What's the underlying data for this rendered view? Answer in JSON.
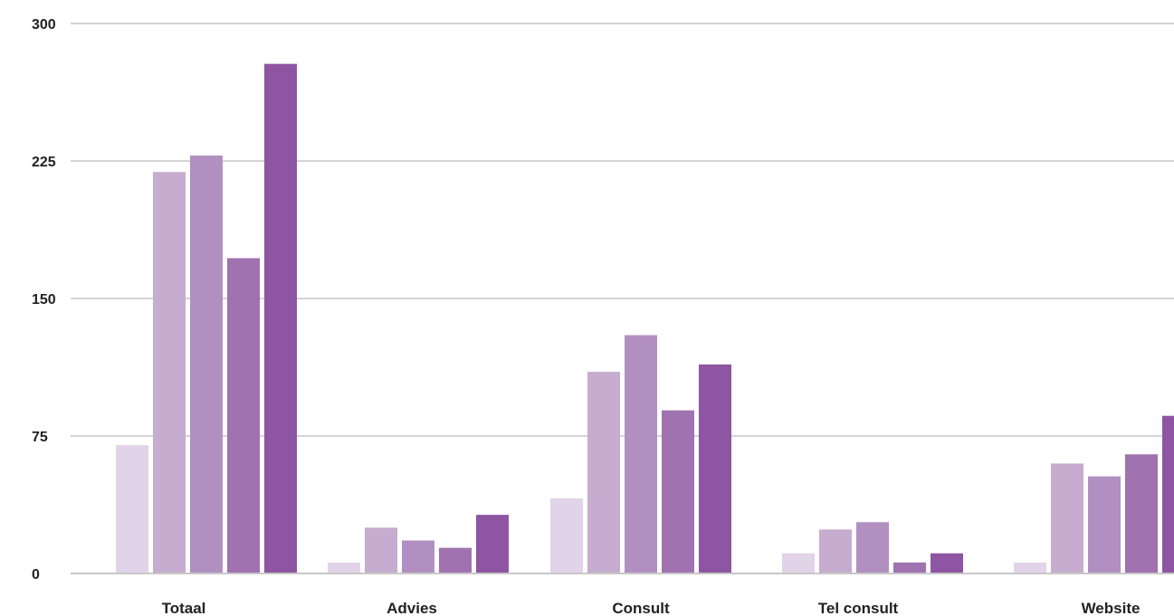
{
  "chart_data": {
    "type": "bar",
    "categories": [
      "Totaal",
      "Advies",
      "Consult",
      "Tel consult",
      "Website"
    ],
    "series": [
      {
        "values": [
          70,
          6,
          41,
          11,
          6
        ]
      },
      {
        "values": [
          219,
          25,
          110,
          24,
          60
        ]
      },
      {
        "values": [
          228,
          18,
          130,
          28,
          53
        ]
      },
      {
        "values": [
          172,
          14,
          89,
          6,
          65
        ]
      },
      {
        "values": [
          278,
          32,
          114,
          11,
          86
        ]
      }
    ],
    "series_colors": [
      "#e1d3e8",
      "#c6accf",
      "#b28fc1",
      "#a072b0",
      "#8e55a2"
    ],
    "ylim": [
      0,
      300
    ],
    "yticks": [
      "0",
      "75",
      "150",
      "225",
      "300"
    ],
    "grid": true,
    "legend": "none",
    "title": "",
    "xlabel": "",
    "ylabel": ""
  }
}
